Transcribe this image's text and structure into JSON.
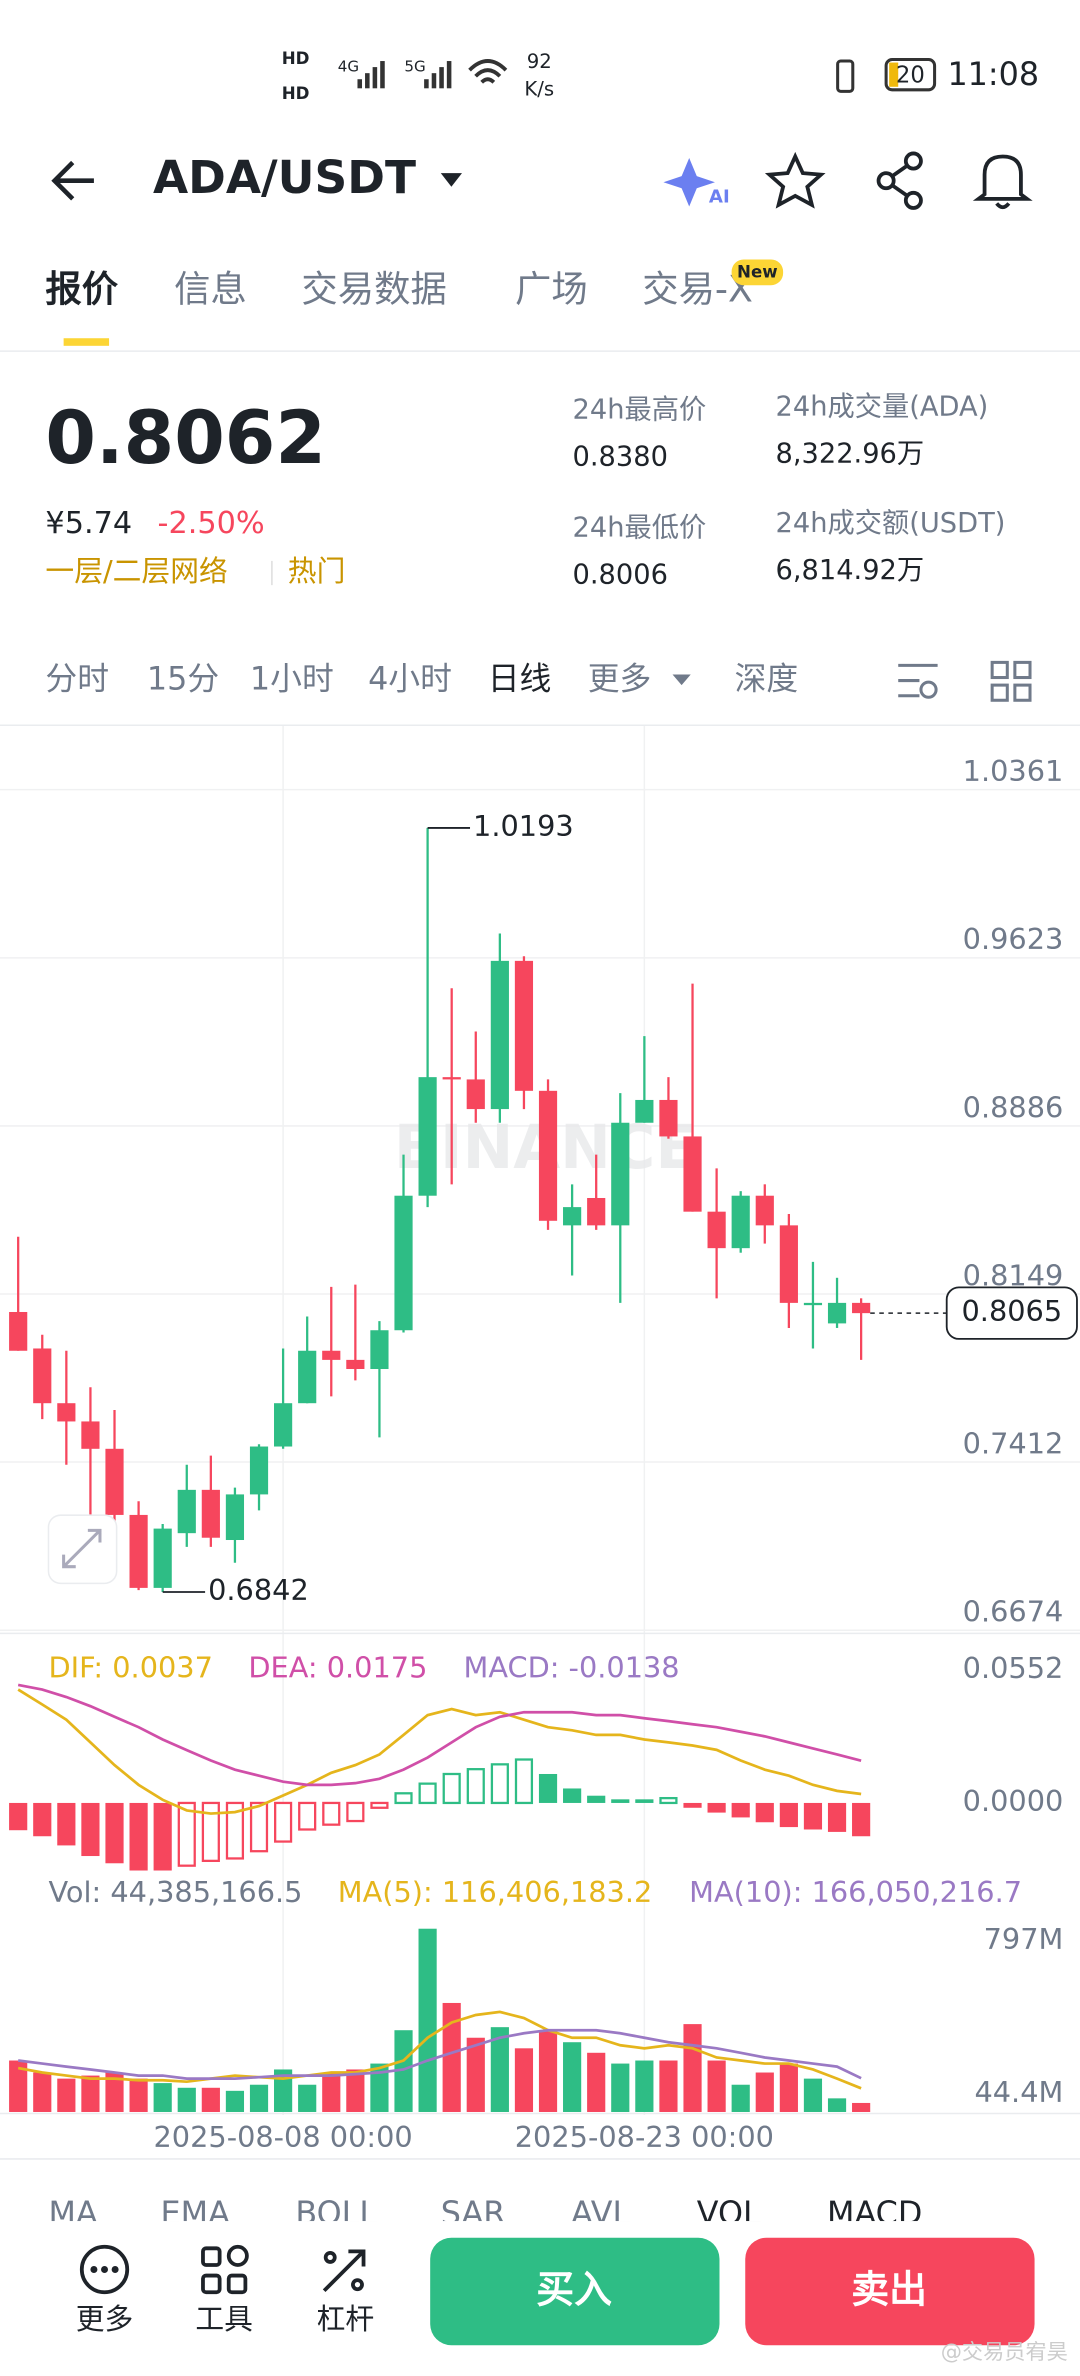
{
  "status_bar": {
    "hd": [
      "HD",
      "HD"
    ],
    "network": [
      "4G",
      "5G"
    ],
    "speed": "92",
    "speed_unit": "K/s",
    "battery": "20",
    "time": "11:08"
  },
  "header": {
    "pair": "ADA/USDT",
    "ai": "AI"
  },
  "tabs": {
    "items": [
      "报价",
      "信息",
      "交易数据",
      "广场",
      "交易-X"
    ],
    "badge": "New"
  },
  "ticker": {
    "price": "0.8062",
    "cny": "¥5.74",
    "change": "-2.50%",
    "tags": [
      "一层/二层网络",
      "热门"
    ],
    "stats": [
      {
        "label": "24h最高价",
        "value": "0.8380"
      },
      {
        "label": "24h成交量(ADA)",
        "value": "8,322.96万"
      },
      {
        "label": "24h最低价",
        "value": "0.8006"
      },
      {
        "label": "24h成交额(USDT)",
        "value": "6,814.92万"
      }
    ]
  },
  "intervals": [
    "分时",
    "15分",
    "1小时",
    "4小时",
    "日线",
    "更多",
    "深度"
  ],
  "chart_data": [
    {
      "type": "candlestick",
      "watermark": "BINANCE",
      "grid": true,
      "up_color": "#2ebd85",
      "down_color": "#f6465d",
      "categories": [
        null,
        null,
        null,
        null,
        null,
        null,
        null,
        null,
        null,
        null,
        null,
        "2025-08-08 00:00",
        null,
        null,
        null,
        null,
        null,
        null,
        null,
        null,
        null,
        null,
        null,
        null,
        null,
        null,
        "2025-08-23 00:00",
        null,
        null,
        null,
        null,
        null,
        null,
        null,
        null,
        null
      ],
      "open": [
        0.807,
        0.791,
        0.767,
        0.759,
        0.747,
        0.718,
        0.686,
        0.71,
        0.729,
        0.707,
        0.727,
        0.748,
        0.767,
        0.79,
        0.786,
        0.782,
        0.799,
        0.858,
        0.91,
        0.909,
        0.896,
        0.961,
        0.904,
        0.845,
        0.857,
        0.845,
        0.89,
        0.9,
        0.884,
        0.851,
        0.835,
        0.858,
        0.845,
        0.81,
        0.802,
        0.811
      ],
      "high": [
        0.84,
        0.797,
        0.79,
        0.774,
        0.764,
        0.724,
        0.714,
        0.74,
        0.744,
        0.73,
        0.749,
        0.791,
        0.805,
        0.818,
        0.819,
        0.803,
        0.876,
        1.0193,
        0.949,
        0.93,
        0.973,
        0.963,
        0.909,
        0.863,
        0.876,
        0.903,
        0.928,
        0.91,
        0.951,
        0.87,
        0.86,
        0.863,
        0.85,
        0.829,
        0.822,
        0.813
      ],
      "low": [
        0.79,
        0.76,
        0.74,
        0.717,
        0.714,
        0.685,
        0.6842,
        0.704,
        0.704,
        0.697,
        0.72,
        0.747,
        0.767,
        0.77,
        0.777,
        0.752,
        0.798,
        0.853,
        0.863,
        0.89,
        0.89,
        0.896,
        0.843,
        0.823,
        0.843,
        0.811,
        0.89,
        0.883,
        0.851,
        0.813,
        0.833,
        0.837,
        0.8,
        0.791,
        0.8,
        0.786
      ],
      "close": [
        0.79,
        0.767,
        0.759,
        0.747,
        0.718,
        0.686,
        0.712,
        0.729,
        0.708,
        0.727,
        0.748,
        0.767,
        0.79,
        0.786,
        0.782,
        0.799,
        0.858,
        0.91,
        0.909,
        0.896,
        0.961,
        0.904,
        0.847,
        0.853,
        0.845,
        0.89,
        0.9,
        0.884,
        0.851,
        0.835,
        0.858,
        0.845,
        0.811,
        0.811,
        0.811,
        0.8065
      ],
      "ylim": [
        0.6674,
        1.0361
      ],
      "yticks": [
        1.0361,
        0.9623,
        0.8886,
        0.8149,
        0.7412,
        0.6674
      ]
    },
    {
      "type": "macd",
      "ylim": [
        -0.0314,
        0.0659
      ],
      "yticks": [
        0.0552,
        {
          "value": 0,
          "label": "0.0000"
        }
      ],
      "series": [
        {
          "name": "DIF: 0.0037",
          "color": "#e5b51c",
          "values": [
            0.047,
            0.0408,
            0.0345,
            0.0251,
            0.0157,
            0.0075,
            0.0013,
            -0.0031,
            -0.0044,
            -0.0038,
            -0.0013,
            0.0031,
            0.0075,
            0.0125,
            0.0157,
            0.0201,
            0.0282,
            0.0364,
            0.0389,
            0.0364,
            0.0376,
            0.0345,
            0.0314,
            0.0301,
            0.0282,
            0.0282,
            0.0263,
            0.0251,
            0.0238,
            0.022,
            0.0176,
            0.0138,
            0.0113,
            0.0075,
            0.005,
            0.0037
          ]
        },
        {
          "name": "DEA: 0.0175",
          "color": "#d04fa8",
          "values": [
            0.0489,
            0.047,
            0.0439,
            0.0401,
            0.0357,
            0.0314,
            0.0263,
            0.0219,
            0.0176,
            0.0138,
            0.0113,
            0.0088,
            0.0075,
            0.0075,
            0.0082,
            0.01,
            0.0138,
            0.0188,
            0.0251,
            0.0314,
            0.0357,
            0.0376,
            0.0376,
            0.0376,
            0.0364,
            0.0364,
            0.0351,
            0.0339,
            0.0326,
            0.0314,
            0.0295,
            0.0276,
            0.0251,
            0.0226,
            0.0201,
            0.0175
          ]
        }
      ],
      "histogram": {
        "name": "MACD: -0.0138",
        "up_color": "#2ebd85",
        "down_color": "#f6465d",
        "values": [
          -0.0113,
          -0.0138,
          -0.0176,
          -0.022,
          -0.025,
          -0.028,
          -0.028,
          -0.026,
          -0.024,
          -0.023,
          -0.02,
          -0.016,
          -0.011,
          -0.009,
          -0.0075,
          -0.002,
          0.004,
          0.008,
          0.012,
          0.014,
          0.016,
          0.018,
          0.012,
          0.006,
          0.003,
          0.0015,
          0.0015,
          0.002,
          -0.002,
          -0.004,
          -0.006,
          -0.008,
          -0.01,
          -0.011,
          -0.012,
          -0.0138
        ]
      }
    },
    {
      "type": "volume",
      "label": "Vol: 44,385,166.5",
      "ylim": [
        0,
        983
      ],
      "yticks": [
        {
          "value": 797,
          "label": "797M"
        },
        {
          "value": 44.4,
          "label": "44.4M"
        }
      ],
      "values": [
        253,
        194,
        164,
        179,
        194,
        164,
        142,
        119,
        119,
        104,
        134,
        209,
        134,
        194,
        209,
        238,
        402,
        901,
        536,
        365,
        417,
        313,
        402,
        343,
        291,
        238,
        253,
        253,
        432,
        253,
        134,
        194,
        238,
        164,
        67,
        44.4
      ],
      "series": [
        {
          "name": "MA(5): 116,406,183.2",
          "color": "#e5b51c",
          "values": [
            216,
            194,
            179,
            164,
            164,
            156,
            156,
            149,
            164,
            179,
            171,
            164,
            179,
            194,
            194,
            216,
            253,
            365,
            440,
            477,
            492,
            462,
            402,
            365,
            365,
            328,
            313,
            328,
            313,
            268,
            253,
            238,
            238,
            209,
            164,
            116.4
          ]
        },
        {
          "name": "MA(10): 166,050,216.7",
          "color": "#9a79c4",
          "values": [
            253,
            238,
            223,
            209,
            194,
            179,
            179,
            164,
            164,
            164,
            171,
            179,
            179,
            179,
            186,
            194,
            209,
            253,
            291,
            328,
            365,
            387,
            402,
            402,
            402,
            387,
            365,
            343,
            328,
            313,
            291,
            268,
            253,
            238,
            223,
            166.05
          ]
        }
      ]
    }
  ],
  "indicator_tabs": [
    "MA",
    "EMA",
    "BOLL",
    "SAR",
    "AVL",
    "VOL",
    "MACD"
  ],
  "bottom_bar": {
    "tools": [
      "更多",
      "工具",
      "杠杆"
    ],
    "buy": "买入",
    "sell": "卖出",
    "watermark": "@交易员宥昊"
  }
}
